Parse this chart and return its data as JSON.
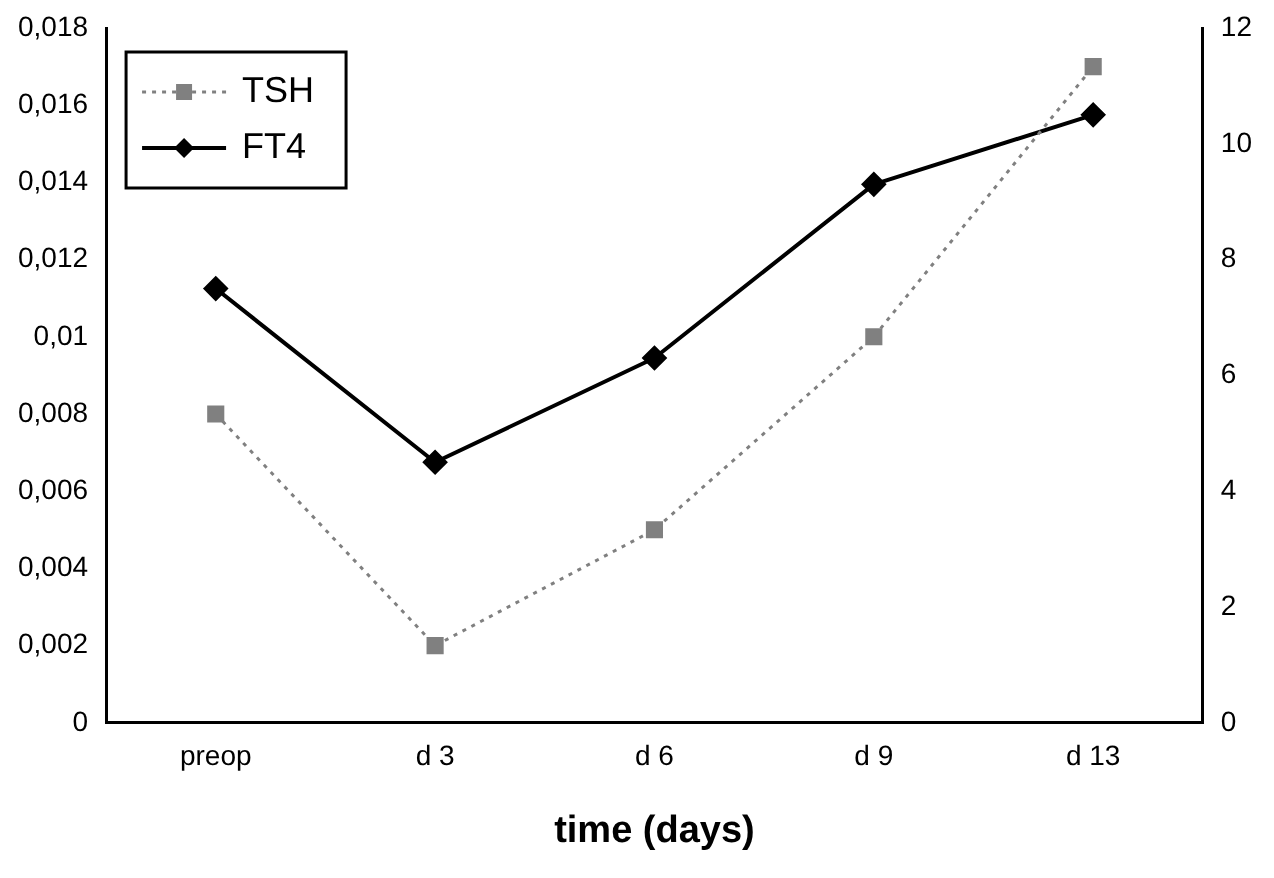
{
  "chart_data": {
    "type": "line",
    "xlabel": "time (days)",
    "categories": [
      "preop",
      "d 3",
      "d 6",
      "d 9",
      "d 13"
    ],
    "series": [
      {
        "name": "TSH",
        "color": "#808080",
        "values": [
          0.008,
          0.002,
          0.005,
          0.01,
          0.017
        ],
        "marker": "square",
        "line_style": "dotted"
      },
      {
        "name": "FT4",
        "color": "#000000",
        "values": [
          7.5,
          4.5,
          6.3,
          9.3,
          10.5
        ],
        "marker": "diamond",
        "line_style": "solid",
        "axis": "y2"
      }
    ],
    "ylim": [
      0,
      0.018
    ],
    "yticks": [
      {
        "value": 0,
        "label": "0"
      },
      {
        "value": 0.002,
        "label": "0,002"
      },
      {
        "value": 0.004,
        "label": "0,004"
      },
      {
        "value": 0.006,
        "label": "0,006"
      },
      {
        "value": 0.008,
        "label": "0,008"
      },
      {
        "value": 0.01,
        "label": "0,01"
      },
      {
        "value": 0.012,
        "label": "0,012"
      },
      {
        "value": 0.014,
        "label": "0,014"
      },
      {
        "value": 0.016,
        "label": "0,016"
      },
      {
        "value": 0.018,
        "label": "0,018"
      }
    ],
    "y2lim": [
      0,
      12
    ],
    "y2ticks": [
      0,
      2,
      4,
      6,
      8,
      10,
      12
    ],
    "grid": false,
    "legend": "top left"
  }
}
